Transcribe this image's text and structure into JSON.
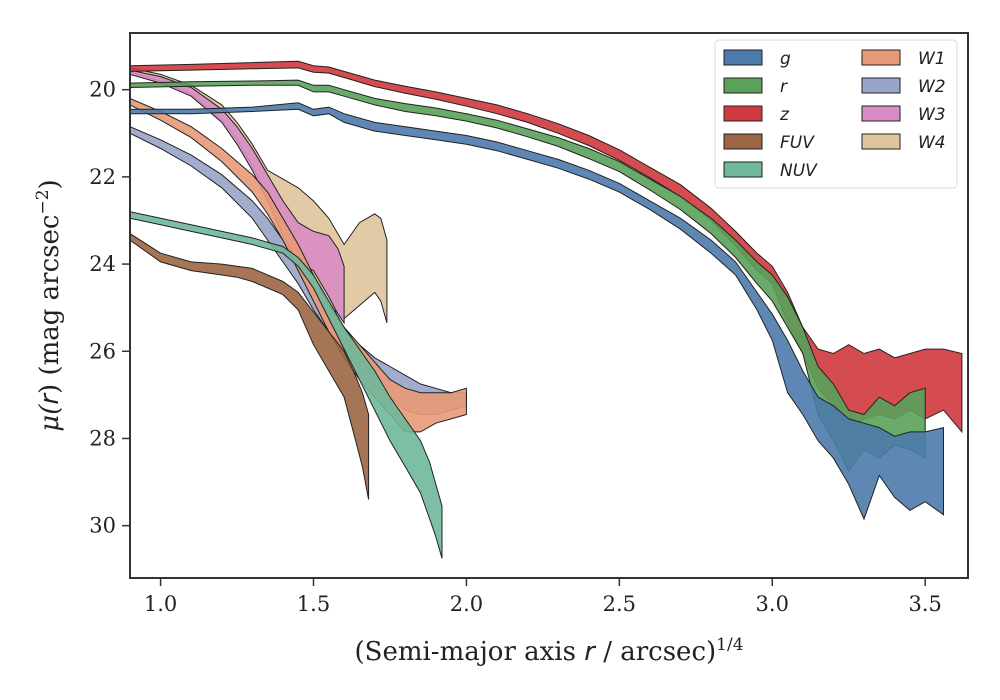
{
  "chart_data": {
    "type": "area",
    "xlabel_prefix": "(Semi-major axis ",
    "xlabel_var": "r",
    "xlabel_mid": " / arcsec)",
    "xlabel_sup": "1/4",
    "ylabel_prefix": "μ(",
    "ylabel_var": "r",
    "ylabel_mid": ") (mag arcsec",
    "ylabel_sup": "−2",
    "ylabel_suffix": ")",
    "xlim": [
      0.9,
      3.64
    ],
    "ylim": [
      31.2,
      18.7
    ],
    "y_inverted": true,
    "x_ticks": [
      1.0,
      1.5,
      2.0,
      2.5,
      3.0,
      3.5
    ],
    "x_tick_labels": [
      "1.0",
      "1.5",
      "2.0",
      "2.5",
      "3.0",
      "3.5"
    ],
    "y_ticks": [
      20,
      22,
      24,
      26,
      28,
      30
    ],
    "y_tick_labels": [
      "20",
      "22",
      "24",
      "26",
      "28",
      "30"
    ],
    "grid": false,
    "legend_position": "top-right",
    "legend_columns": 2,
    "series": [
      {
        "name": "g",
        "color": "#4c7bab",
        "x": [
          0.9,
          1.1,
          1.3,
          1.45,
          1.5,
          1.55,
          1.6,
          1.7,
          1.8,
          1.9,
          2.0,
          2.1,
          2.2,
          2.3,
          2.4,
          2.5,
          2.6,
          2.7,
          2.8,
          2.88,
          2.95,
          3.0,
          3.05,
          3.1,
          3.15,
          3.2,
          3.25,
          3.3,
          3.35,
          3.4,
          3.45,
          3.5,
          3.56
        ],
        "y_top": [
          20.45,
          20.45,
          20.4,
          20.3,
          20.45,
          20.4,
          20.55,
          20.75,
          20.85,
          20.95,
          21.05,
          21.2,
          21.4,
          21.6,
          21.85,
          22.15,
          22.55,
          22.95,
          23.45,
          23.95,
          24.65,
          25.15,
          25.75,
          26.45,
          27.05,
          27.25,
          27.55,
          27.65,
          27.75,
          27.95,
          27.85,
          27.85,
          27.75
        ],
        "y_bot": [
          20.55,
          20.55,
          20.5,
          20.45,
          20.6,
          20.55,
          20.75,
          20.95,
          21.05,
          21.15,
          21.25,
          21.4,
          21.6,
          21.8,
          22.05,
          22.35,
          22.75,
          23.2,
          23.75,
          24.25,
          25.05,
          25.75,
          26.95,
          27.45,
          28.05,
          28.45,
          29.05,
          29.85,
          28.85,
          29.35,
          29.65,
          29.45,
          29.75
        ]
      },
      {
        "name": "r",
        "color": "#5aa25a",
        "x": [
          0.9,
          1.1,
          1.3,
          1.45,
          1.5,
          1.55,
          1.6,
          1.7,
          1.8,
          1.9,
          2.0,
          2.1,
          2.2,
          2.3,
          2.4,
          2.5,
          2.6,
          2.7,
          2.8,
          2.88,
          2.95,
          3.0,
          3.05,
          3.1,
          3.15,
          3.2,
          3.25,
          3.3,
          3.35,
          3.4,
          3.45,
          3.5
        ],
        "y_top": [
          19.85,
          19.82,
          19.8,
          19.78,
          19.9,
          19.9,
          20.0,
          20.2,
          20.32,
          20.42,
          20.55,
          20.7,
          20.9,
          21.1,
          21.35,
          21.65,
          22.05,
          22.45,
          22.95,
          23.45,
          23.95,
          24.25,
          24.75,
          25.45,
          26.35,
          26.75,
          27.35,
          27.45,
          27.05,
          27.25,
          26.95,
          26.85
        ],
        "y_bot": [
          19.95,
          19.92,
          19.9,
          19.9,
          20.05,
          20.05,
          20.15,
          20.35,
          20.5,
          20.6,
          20.72,
          20.88,
          21.08,
          21.3,
          21.58,
          21.88,
          22.3,
          22.75,
          23.3,
          23.85,
          24.45,
          24.85,
          25.45,
          26.05,
          27.45,
          28.05,
          28.75,
          28.25,
          28.45,
          28.15,
          28.25,
          28.45
        ]
      },
      {
        "name": "z",
        "color": "#d0393d",
        "x": [
          0.9,
          1.1,
          1.3,
          1.45,
          1.5,
          1.55,
          1.6,
          1.7,
          1.8,
          1.9,
          2.0,
          2.1,
          2.2,
          2.3,
          2.4,
          2.5,
          2.6,
          2.7,
          2.8,
          2.88,
          2.95,
          3.0,
          3.05,
          3.1,
          3.15,
          3.2,
          3.25,
          3.3,
          3.35,
          3.4,
          3.45,
          3.5,
          3.56,
          3.62
        ],
        "y_top": [
          19.45,
          19.42,
          19.38,
          19.35,
          19.45,
          19.48,
          19.58,
          19.78,
          19.92,
          20.05,
          20.2,
          20.35,
          20.55,
          20.78,
          21.05,
          21.38,
          21.78,
          22.18,
          22.72,
          23.25,
          23.75,
          24.05,
          24.65,
          25.45,
          25.95,
          26.05,
          25.85,
          26.05,
          25.95,
          26.15,
          26.05,
          25.95,
          25.95,
          26.05
        ],
        "y_bot": [
          19.58,
          19.55,
          19.52,
          19.5,
          19.6,
          19.62,
          19.72,
          19.93,
          20.08,
          20.22,
          20.38,
          20.55,
          20.75,
          21.0,
          21.28,
          21.62,
          22.02,
          22.45,
          23.0,
          23.58,
          24.15,
          24.45,
          25.35,
          26.05,
          26.85,
          27.25,
          27.85,
          27.55,
          27.45,
          27.55,
          27.35,
          27.55,
          27.35,
          27.85
        ]
      },
      {
        "name": "FUV",
        "color": "#9c6644",
        "x": [
          0.9,
          1.0,
          1.1,
          1.2,
          1.25,
          1.3,
          1.4,
          1.45,
          1.5,
          1.55,
          1.6,
          1.63,
          1.66,
          1.68
        ],
        "y_top": [
          23.3,
          23.75,
          23.95,
          24.0,
          24.05,
          24.1,
          24.4,
          24.65,
          25.1,
          25.55,
          26.0,
          26.45,
          26.95,
          27.45
        ],
        "y_bot": [
          23.45,
          23.95,
          24.15,
          24.25,
          24.3,
          24.4,
          24.7,
          25.05,
          25.85,
          26.45,
          27.05,
          27.85,
          28.65,
          29.4
        ]
      },
      {
        "name": "NUV",
        "color": "#6fb89a",
        "x": [
          0.9,
          1.0,
          1.1,
          1.2,
          1.3,
          1.4,
          1.45,
          1.5,
          1.55,
          1.6,
          1.65,
          1.7,
          1.75,
          1.8,
          1.85,
          1.88,
          1.9,
          1.92
        ],
        "y_top": [
          22.8,
          22.95,
          23.1,
          23.25,
          23.4,
          23.6,
          23.85,
          24.25,
          24.85,
          25.45,
          25.95,
          26.45,
          27.05,
          27.55,
          28.05,
          28.55,
          29.05,
          29.55
        ],
        "y_bot": [
          22.95,
          23.1,
          23.25,
          23.4,
          23.55,
          23.75,
          24.05,
          24.55,
          25.25,
          25.95,
          26.65,
          27.35,
          28.05,
          28.65,
          29.25,
          29.85,
          30.25,
          30.75
        ]
      },
      {
        "name": "W1",
        "color": "#e89a78",
        "x": [
          0.9,
          1.0,
          1.1,
          1.2,
          1.3,
          1.35,
          1.4,
          1.45,
          1.5,
          1.55,
          1.6,
          1.65,
          1.7,
          1.75,
          1.8,
          1.85,
          1.9,
          1.95,
          2.0
        ],
        "y_top": [
          20.2,
          20.5,
          20.85,
          21.35,
          21.95,
          22.35,
          22.95,
          23.55,
          24.25,
          24.95,
          25.45,
          25.85,
          26.25,
          26.65,
          26.85,
          26.95,
          26.95,
          26.95,
          26.85
        ],
        "y_bot": [
          20.35,
          20.7,
          21.1,
          21.65,
          22.35,
          22.85,
          23.45,
          24.15,
          24.85,
          25.55,
          26.15,
          26.65,
          27.05,
          27.45,
          27.85,
          27.85,
          27.65,
          27.55,
          27.45
        ]
      },
      {
        "name": "W2",
        "color": "#98a4c8",
        "x": [
          0.9,
          1.0,
          1.1,
          1.2,
          1.3,
          1.35,
          1.4,
          1.45,
          1.5,
          1.55,
          1.6,
          1.65,
          1.7,
          1.75,
          1.8,
          1.85,
          1.9,
          1.95,
          2.0
        ],
        "y_top": [
          20.85,
          21.15,
          21.5,
          21.95,
          22.55,
          22.95,
          23.45,
          23.95,
          24.55,
          25.05,
          25.45,
          25.85,
          26.15,
          26.35,
          26.55,
          26.75,
          26.85,
          26.95,
          26.95
        ],
        "y_bot": [
          21.0,
          21.35,
          21.75,
          22.25,
          22.95,
          23.45,
          23.95,
          24.45,
          25.05,
          25.55,
          25.95,
          26.35,
          26.75,
          27.05,
          27.35,
          27.45,
          27.45,
          27.35,
          27.25
        ]
      },
      {
        "name": "W3",
        "color": "#d98cc4",
        "x": [
          0.9,
          1.0,
          1.1,
          1.2,
          1.25,
          1.3,
          1.35,
          1.4,
          1.45,
          1.5,
          1.55,
          1.58,
          1.6
        ],
        "y_top": [
          19.55,
          19.7,
          19.95,
          20.45,
          20.85,
          21.35,
          21.95,
          22.55,
          23.05,
          23.25,
          23.35,
          23.65,
          24.05
        ],
        "y_bot": [
          19.65,
          19.85,
          20.15,
          20.75,
          21.25,
          21.85,
          22.55,
          23.35,
          23.95,
          24.15,
          24.75,
          25.15,
          25.35
        ]
      },
      {
        "name": "W4",
        "color": "#dfc49c",
        "x": [
          0.9,
          1.0,
          1.1,
          1.2,
          1.25,
          1.3,
          1.35,
          1.4,
          1.45,
          1.5,
          1.55,
          1.6,
          1.65,
          1.7,
          1.72,
          1.74
        ],
        "y_top": [
          19.5,
          19.65,
          19.9,
          20.35,
          20.75,
          21.25,
          21.85,
          22.05,
          22.25,
          22.55,
          22.95,
          23.55,
          23.05,
          22.85,
          22.95,
          23.45
        ],
        "y_bot": [
          19.6,
          19.8,
          20.1,
          20.7,
          21.15,
          21.75,
          22.45,
          23.05,
          23.75,
          24.35,
          24.95,
          25.25,
          24.95,
          24.65,
          24.85,
          25.35
        ]
      }
    ]
  }
}
